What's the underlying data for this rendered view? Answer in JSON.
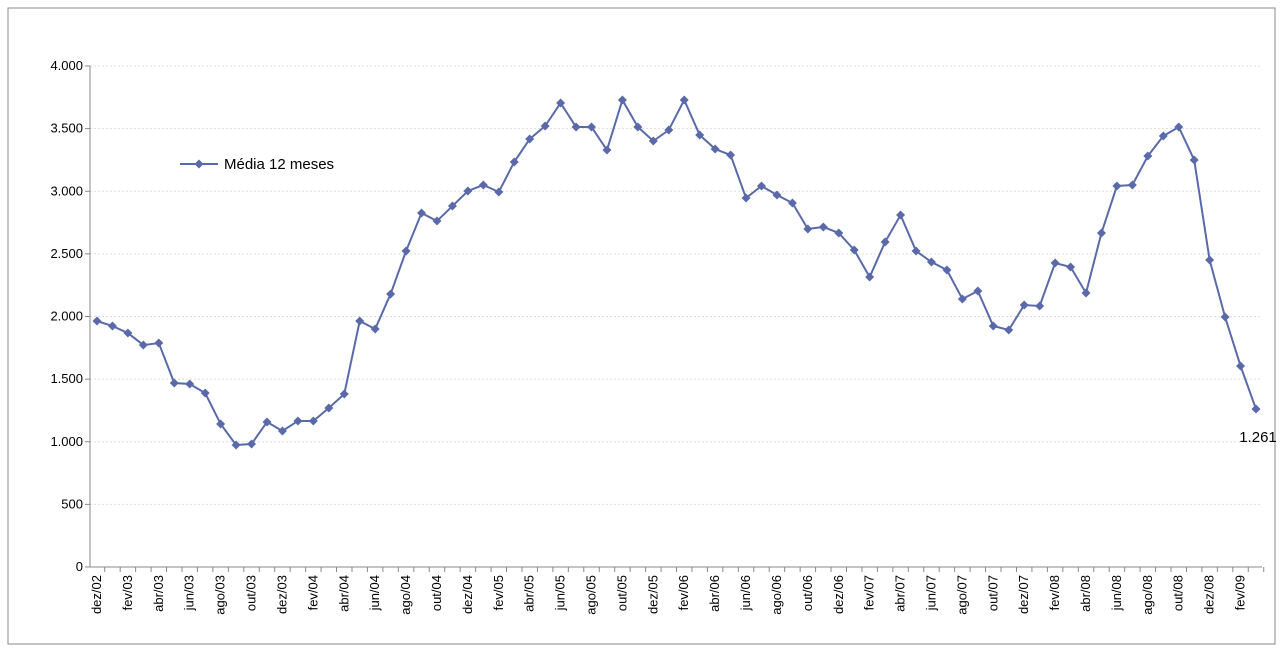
{
  "chart_data": {
    "type": "line",
    "categories": [
      "dez/02",
      null,
      "fev/03",
      null,
      "abr/03",
      null,
      "jun/03",
      null,
      "ago/03",
      null,
      "out/03",
      null,
      "dez/03",
      null,
      "fev/04",
      null,
      "abr/04",
      null,
      "jun/04",
      null,
      "ago/04",
      null,
      "out/04",
      null,
      "dez/04",
      null,
      "fev/05",
      null,
      "abr/05",
      null,
      "jun/05",
      null,
      "ago/05",
      null,
      "out/05",
      null,
      "dez/05",
      null,
      "fev/06",
      null,
      "abr/06",
      null,
      "jun/06",
      null,
      "ago/06",
      null,
      "out/06",
      null,
      "dez/06",
      null,
      "fev/07",
      null,
      "abr/07",
      null,
      "jun/07",
      null,
      "ago/07",
      null,
      "out/07",
      null,
      "dez/07",
      null,
      "fev/08",
      null,
      "abr/08",
      null,
      "jun/08",
      null,
      "ago/08",
      null,
      "out/08",
      null,
      "dez/08",
      null,
      "fev/09",
      null
    ],
    "series": [
      {
        "name": "Média 12 meses",
        "color": "#5a6aa9",
        "values": [
          1964,
          1924,
          1868,
          1772,
          1788,
          1469,
          1461,
          1389,
          1142,
          974,
          982,
          1158,
          1086,
          1166,
          1166,
          1269,
          1381,
          1964,
          1900,
          2180,
          2523,
          2826,
          2762,
          2882,
          3002,
          3050,
          2994,
          3234,
          3417,
          3521,
          3705,
          3513,
          3513,
          3329,
          3729,
          3513,
          3401,
          3489,
          3729,
          3449,
          3337,
          3289,
          2946,
          3042,
          2970,
          2906,
          2699,
          2715,
          2667,
          2531,
          2315,
          2595,
          2810,
          2523,
          2435,
          2371,
          2140,
          2204,
          1924,
          1892,
          2092,
          2084,
          2427,
          2395,
          2188,
          2667,
          3042,
          3050,
          3281,
          3441,
          3513,
          3250,
          2451,
          1996,
          1605,
          1261
        ],
        "value_labels": [
          null,
          null,
          null,
          null,
          null,
          null,
          null,
          null,
          null,
          null,
          null,
          null,
          null,
          null,
          null,
          null,
          null,
          null,
          null,
          null,
          null,
          null,
          null,
          null,
          null,
          null,
          null,
          null,
          null,
          null,
          null,
          null,
          null,
          null,
          null,
          null,
          null,
          null,
          null,
          null,
          null,
          null,
          null,
          null,
          null,
          null,
          null,
          null,
          null,
          null,
          null,
          null,
          null,
          null,
          null,
          null,
          null,
          null,
          null,
          null,
          null,
          null,
          null,
          null,
          null,
          null,
          null,
          null,
          null,
          null,
          null,
          null,
          null,
          null,
          null,
          "1.261"
        ]
      }
    ],
    "ylim": [
      0,
      4000
    ],
    "yticks": [
      0,
      500,
      {
        "value": 1000,
        "label": "1.000"
      },
      {
        "value": 1500,
        "label": "1.500"
      },
      {
        "value": 2000,
        "label": "2.000"
      },
      {
        "value": 2500,
        "label": "2.500"
      },
      {
        "value": 3000,
        "label": "3.000"
      },
      {
        "value": 3500,
        "label": "3.500"
      },
      {
        "value": 4000,
        "label": "4.000"
      }
    ],
    "grid": true,
    "legend": "upper left"
  }
}
